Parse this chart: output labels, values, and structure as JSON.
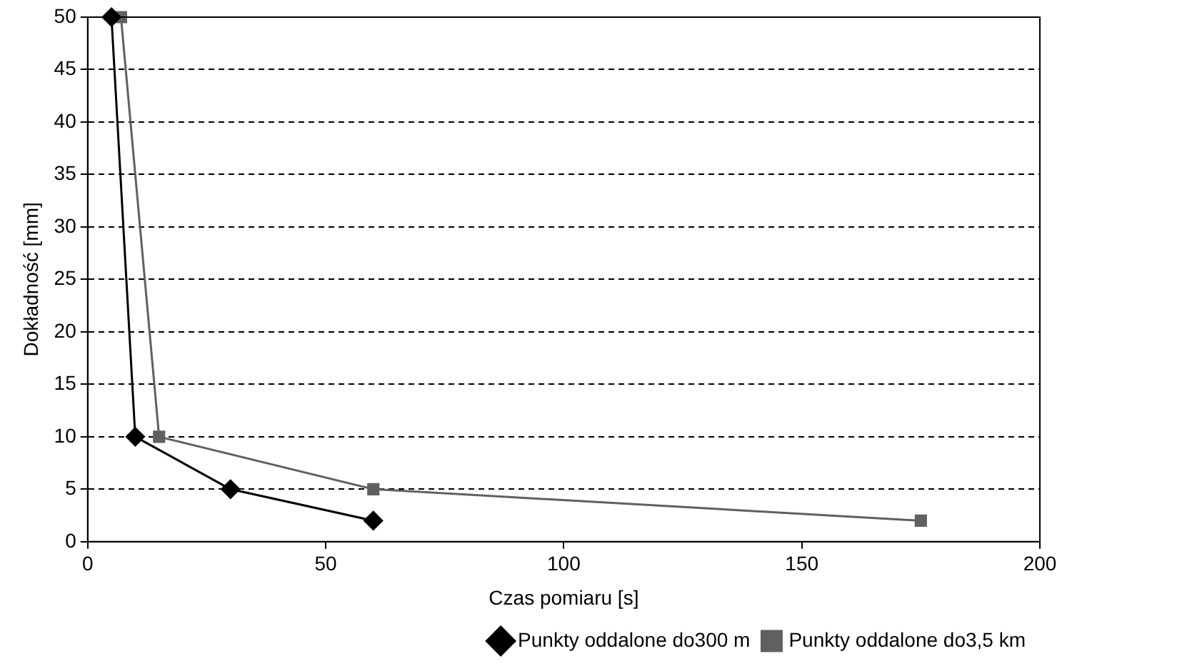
{
  "chart_data": {
    "type": "line",
    "xlabel": "Czas pomiaru [s]",
    "ylabel": "Dokładność [mm]",
    "xlim": [
      0,
      200
    ],
    "xticks": [
      0,
      50,
      100,
      150,
      200
    ],
    "ylim": [
      0,
      50
    ],
    "yticks": [
      0,
      5,
      10,
      15,
      20,
      25,
      30,
      35,
      40,
      45,
      50
    ],
    "grid": "y",
    "legend": "bottom right",
    "line_style": "solid",
    "series": [
      {
        "name": "Punkty oddalone do300 m",
        "color": "#000000",
        "marker": "diamond",
        "x": [
          5,
          10,
          30,
          60
        ],
        "values": [
          50,
          10,
          5,
          2
        ]
      },
      {
        "name": "Punkty oddalone do3,5 km",
        "color": "#606060",
        "marker": "square",
        "x": [
          7,
          15,
          60,
          175
        ],
        "values": [
          50,
          10,
          5,
          2
        ]
      }
    ]
  }
}
